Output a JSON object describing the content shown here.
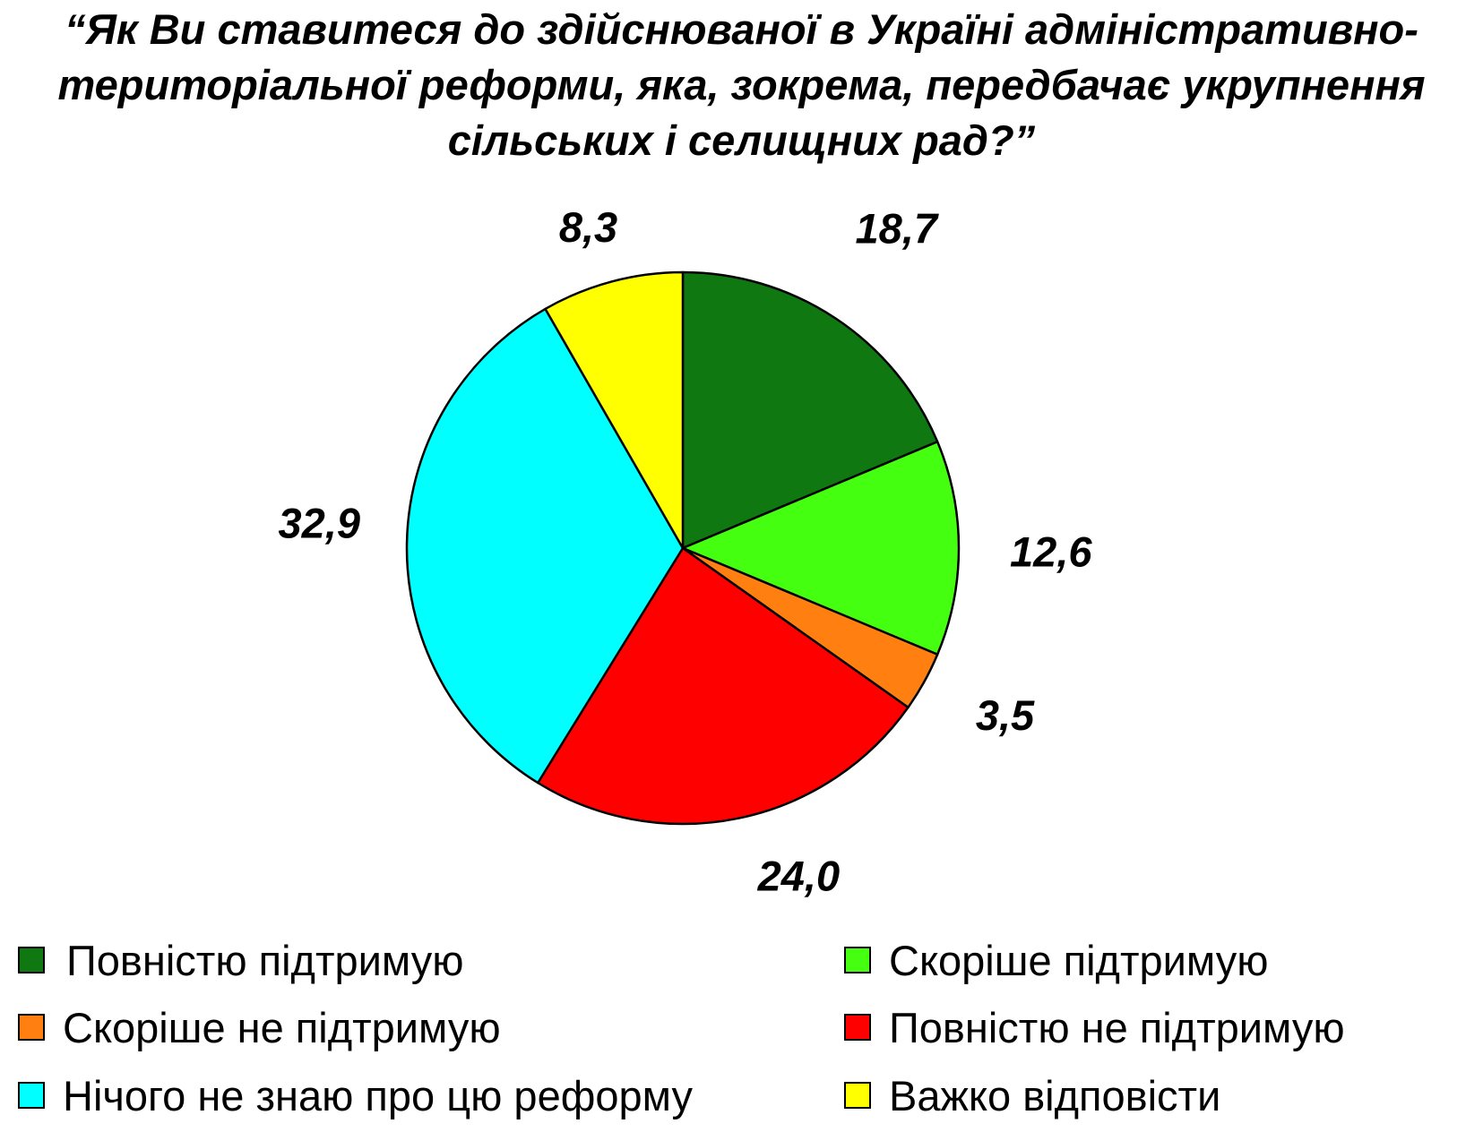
{
  "chart_data": {
    "type": "pie",
    "title_lines": [
      "“Як Ви ставитеся до здійснюваної в Україні адміністративно-",
      "територіальної реформи, яка, зокрема, передбачає укрупнення",
      "сільських і селищних рад?”"
    ],
    "start_angle_deg": 0,
    "direction": "clockwise",
    "legend_placement": "bottom",
    "slices": [
      {
        "label": "Повністю підтримую",
        "value": 18.7,
        "value_label": "18,7",
        "color": "#107810"
      },
      {
        "label": "Скоріше підтримую",
        "value": 12.6,
        "value_label": "12,6",
        "color": "#44ff10"
      },
      {
        "label": "Скоріше не підтримую",
        "value": 3.5,
        "value_label": "3,5",
        "color": "#ff8010"
      },
      {
        "label": "Повністю не підтримую",
        "value": 24.0,
        "value_label": "24,0",
        "color": "#ff0000"
      },
      {
        "label": "Нічого не знаю про цю реформу",
        "value": 32.9,
        "value_label": "32,9",
        "color": "#00ffff"
      },
      {
        "label": "Важко відповісти",
        "value": 8.3,
        "value_label": "8,3",
        "color": "#ffff00"
      }
    ]
  }
}
